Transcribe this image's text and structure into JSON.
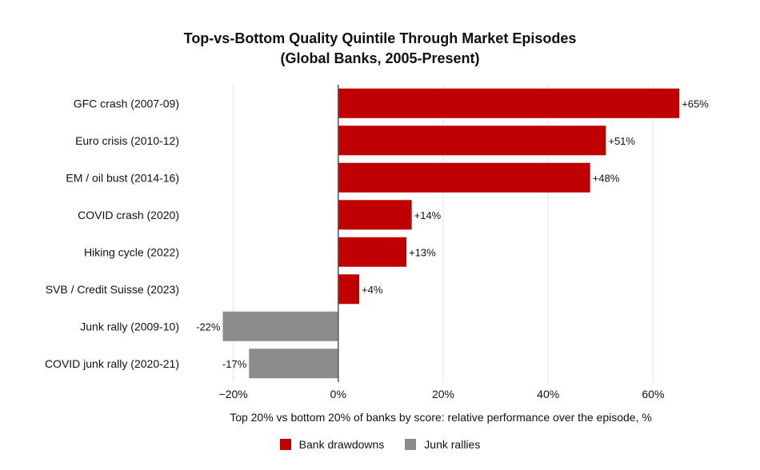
{
  "chart_data": {
    "type": "bar",
    "orientation": "horizontal",
    "title": "Top-vs-Bottom Quality Quintile Through Market Episodes",
    "subtitle": "(Global Banks, 2005-Present)",
    "xlabel": "Top 20% vs bottom 20% of banks by score: relative performance over the episode, %",
    "ylabel": "",
    "xlim": [
      -30,
      70
    ],
    "x_ticks": [
      -20,
      0,
      20,
      40,
      60
    ],
    "x_tick_labels": [
      "−20%",
      "0%",
      "20%",
      "40%",
      "60%"
    ],
    "grid": true,
    "legend_position": "bottom",
    "categories": [
      "GFC crash (2007-09)",
      "Euro crisis (2010-12)",
      "EM / oil bust (2014-16)",
      "COVID crash (2020)",
      "Hiking cycle (2022)",
      "SVB / Credit Suisse (2023)",
      "Junk rally (2009-10)",
      "COVID junk rally (2020-21)"
    ],
    "values": [
      65,
      51,
      48,
      14,
      13,
      4,
      -22,
      -17
    ],
    "value_labels": [
      "+65%",
      "+51%",
      "+48%",
      "+14%",
      "+13%",
      "+4%",
      "-22%",
      "-17%"
    ],
    "series_membership": [
      0,
      0,
      0,
      0,
      0,
      0,
      1,
      1
    ],
    "series": [
      {
        "name": "Bank drawdowns",
        "color": "#c00000"
      },
      {
        "name": "Junk rallies",
        "color": "#8c8c8c"
      }
    ]
  }
}
